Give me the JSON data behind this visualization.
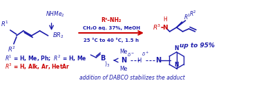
{
  "bg_color": "#ffffff",
  "title": "",
  "blue": "#1a1aaa",
  "dark_blue": "#000080",
  "red": "#cc0000",
  "arrow_color": "#cc0000",
  "reaction_conditions_line1": "R³–NH₂",
  "reaction_conditions_line2": "CH₂O aq. 37%, MeOH",
  "reaction_conditions_line3": "25 °C to 40 °C, 1.5 h",
  "yield_text": "up to 95%",
  "r1_text": "R¹ = H, Me, Ph; R² = H, Me",
  "r3_text": "R³ = H, Alk, Ar, HetAr",
  "dabco_text": "addition of DABCO stabilizes the adduct",
  "nhme2_label": "NHMe₂",
  "br2_label": "BR₂"
}
